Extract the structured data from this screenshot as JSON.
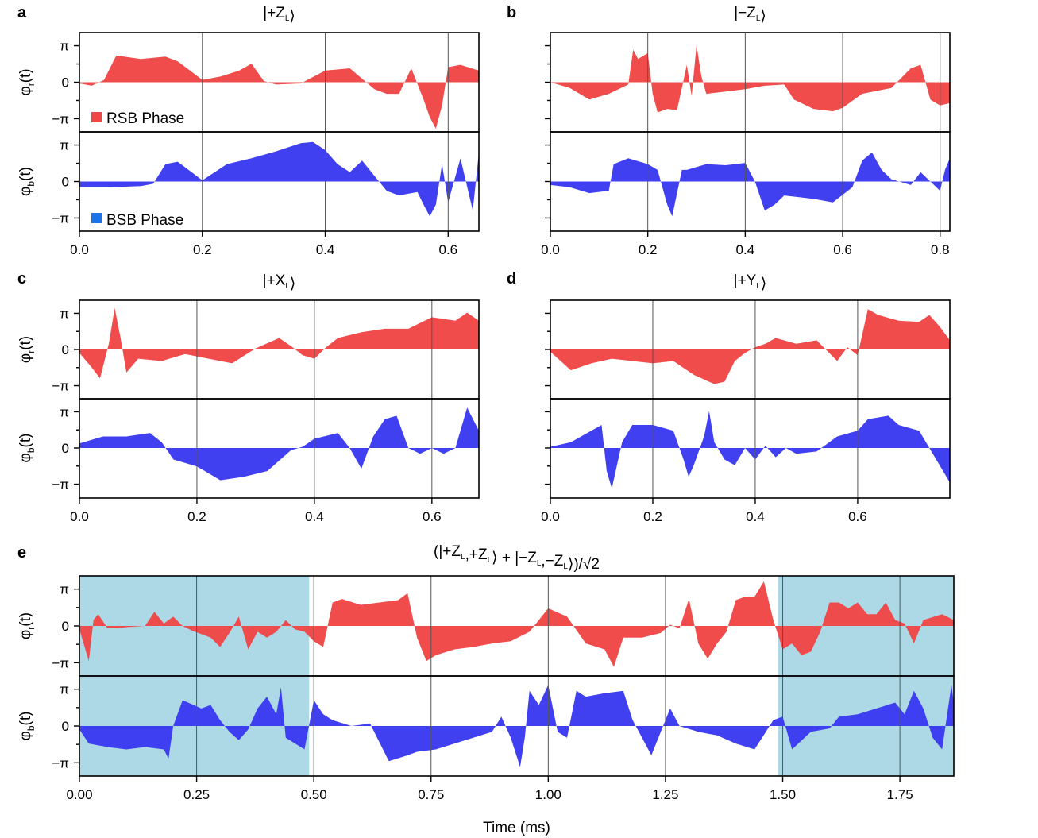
{
  "chart_data": [
    {
      "panel": "a",
      "type": "area",
      "title": "|+Z_L⟩",
      "xlim": [
        0,
        0.65
      ],
      "xticks": [
        "0.0",
        "0.2",
        "0.4",
        "0.6"
      ],
      "xtick_values": [
        0,
        0.2,
        0.4,
        0.6
      ],
      "vlines": [
        0.2,
        0.4,
        0.6
      ],
      "yticks": [
        "π",
        "0",
        "−π"
      ],
      "ylim": [
        -4.0,
        4.0
      ],
      "ylabels": {
        "top": "φr(t)",
        "bottom": "φb(t)"
      },
      "legend": {
        "top": "RSB Phase",
        "bottom": "BSB Phase"
      },
      "series": [
        {
          "name": "RSB Phase",
          "color": "#f04646",
          "x": [
            0,
            0.02,
            0.04,
            0.06,
            0.1,
            0.14,
            0.16,
            0.18,
            0.2,
            0.23,
            0.26,
            0.28,
            0.3,
            0.32,
            0.36,
            0.4,
            0.44,
            0.48,
            0.5,
            0.52,
            0.54,
            0.56,
            0.57,
            0.58,
            0.59,
            0.6,
            0.62,
            0.65
          ],
          "y": [
            -0.1,
            -0.3,
            0.2,
            2.3,
            2.0,
            2.2,
            1.8,
            1.0,
            0.2,
            0.5,
            1.0,
            1.6,
            0.1,
            -0.2,
            -0.1,
            1.0,
            1.2,
            -0.6,
            -1.0,
            -1.0,
            1.2,
            -1.5,
            -3.0,
            -4.0,
            -2.0,
            1.3,
            1.5,
            1.0
          ]
        },
        {
          "name": "BSB Phase",
          "color": "#3a3af0",
          "x": [
            0,
            0.05,
            0.1,
            0.12,
            0.14,
            0.16,
            0.2,
            0.24,
            0.28,
            0.32,
            0.36,
            0.38,
            0.4,
            0.42,
            0.44,
            0.46,
            0.48,
            0.5,
            0.52,
            0.55,
            0.56,
            0.57,
            0.58,
            0.59,
            0.6,
            0.62,
            0.64,
            0.65
          ],
          "y": [
            -0.5,
            -0.5,
            -0.4,
            -0.2,
            1.5,
            1.7,
            0.1,
            1.5,
            2.0,
            2.6,
            3.3,
            3.4,
            2.7,
            1.5,
            0.8,
            1.8,
            0.5,
            -0.8,
            -1.2,
            -0.9,
            -2.0,
            -3.0,
            -2.0,
            1.5,
            -1.8,
            2.0,
            -2.5,
            2.5
          ]
        }
      ]
    },
    {
      "panel": "b",
      "type": "area",
      "title": "|−Z_L⟩",
      "xlim": [
        0,
        0.82
      ],
      "xticks": [
        "0.0",
        "0.2",
        "0.4",
        "0.6",
        "0.8"
      ],
      "xtick_values": [
        0,
        0.2,
        0.4,
        0.6,
        0.8
      ],
      "vlines": [
        0.2,
        0.4,
        0.6,
        0.8
      ],
      "yticks": [],
      "ylim": [
        -4.0,
        4.0
      ],
      "ylabels": {
        "top": "",
        "bottom": ""
      },
      "series": [
        {
          "name": "RSB Phase",
          "color": "#f04646",
          "x": [
            0,
            0.04,
            0.08,
            0.12,
            0.16,
            0.17,
            0.18,
            0.2,
            0.21,
            0.22,
            0.24,
            0.26,
            0.27,
            0.28,
            0.29,
            0.3,
            0.31,
            0.32,
            0.36,
            0.4,
            0.44,
            0.48,
            0.5,
            0.54,
            0.58,
            0.6,
            0.64,
            0.7,
            0.74,
            0.76,
            0.78,
            0.8,
            0.82
          ],
          "y": [
            0,
            -0.5,
            -1.5,
            -1.0,
            -0.2,
            2.8,
            2.0,
            2.5,
            -1.0,
            -2.6,
            -2.3,
            -2.4,
            -0.5,
            1.5,
            -1.2,
            3.2,
            0.5,
            -1.0,
            -0.8,
            -0.6,
            -0.3,
            -0.2,
            -1.5,
            -2.3,
            -2.5,
            -2.2,
            -1.0,
            -0.5,
            1.2,
            1.5,
            -1.5,
            -2.0,
            -1.8
          ]
        },
        {
          "name": "BSB Phase",
          "color": "#3a3af0",
          "x": [
            0,
            0.04,
            0.08,
            0.12,
            0.13,
            0.16,
            0.2,
            0.22,
            0.24,
            0.25,
            0.26,
            0.27,
            0.28,
            0.32,
            0.36,
            0.4,
            0.42,
            0.44,
            0.46,
            0.48,
            0.5,
            0.54,
            0.58,
            0.62,
            0.64,
            0.66,
            0.68,
            0.7,
            0.74,
            0.76,
            0.78,
            0.8,
            0.81,
            0.82
          ],
          "y": [
            -0.3,
            -0.5,
            -1.0,
            -0.8,
            1.5,
            2.0,
            1.5,
            1.0,
            -2.0,
            -3.0,
            -1.0,
            1.0,
            1.0,
            1.5,
            1.4,
            1.6,
            0.0,
            -2.5,
            -2.0,
            -1.2,
            -1.3,
            -1.5,
            -1.8,
            -0.5,
            1.8,
            2.5,
            1.0,
            0.2,
            -0.3,
            0.8,
            0.0,
            -0.8,
            1.0,
            2.0
          ]
        }
      ]
    },
    {
      "panel": "c",
      "type": "area",
      "title": "|+X_L⟩",
      "xlim": [
        0,
        0.68
      ],
      "xticks": [
        "0.0",
        "0.2",
        "0.4",
        "0.6"
      ],
      "xtick_values": [
        0,
        0.2,
        0.4,
        0.6
      ],
      "vlines": [
        0.2,
        0.4,
        0.6
      ],
      "yticks": [
        "π",
        "0",
        "−π"
      ],
      "ylim": [
        -4.0,
        4.0
      ],
      "ylabels": {
        "top": "φr(t)",
        "bottom": "φb(t)"
      },
      "series": [
        {
          "name": "RSB Phase",
          "color": "#f04646",
          "x": [
            0,
            0.02,
            0.035,
            0.05,
            0.06,
            0.07,
            0.08,
            0.1,
            0.14,
            0.18,
            0.22,
            0.26,
            0.3,
            0.34,
            0.36,
            0.38,
            0.4,
            0.42,
            0.44,
            0.48,
            0.52,
            0.56,
            0.6,
            0.64,
            0.66,
            0.68
          ],
          "y": [
            -0.3,
            -1.5,
            -2.5,
            0.5,
            3.6,
            1.0,
            -2.0,
            -0.8,
            -1.0,
            -0.4,
            -0.8,
            -1.2,
            0.1,
            1.0,
            0.3,
            -0.5,
            -0.8,
            0.2,
            1.0,
            1.5,
            1.8,
            1.8,
            2.8,
            2.5,
            3.2,
            2.5
          ]
        },
        {
          "name": "BSB Phase",
          "color": "#3a3af0",
          "x": [
            0,
            0.04,
            0.08,
            0.12,
            0.14,
            0.16,
            0.2,
            0.24,
            0.28,
            0.32,
            0.36,
            0.38,
            0.4,
            0.44,
            0.46,
            0.48,
            0.5,
            0.52,
            0.54,
            0.56,
            0.58,
            0.6,
            0.62,
            0.64,
            0.66,
            0.68
          ],
          "y": [
            0.4,
            1.0,
            1.0,
            1.3,
            0.5,
            -1.0,
            -1.6,
            -2.8,
            -2.5,
            -2.0,
            -0.2,
            0.1,
            0.8,
            1.3,
            0.0,
            -1.8,
            1.0,
            2.5,
            2.8,
            0.0,
            -0.5,
            0.0,
            -0.5,
            0.0,
            3.5,
            1.5
          ]
        }
      ]
    },
    {
      "panel": "d",
      "type": "area",
      "title": "|+Y_L⟩",
      "xlim": [
        0,
        0.78
      ],
      "xticks": [
        "0.0",
        "0.2",
        "0.4",
        "0.6"
      ],
      "xtick_values": [
        0,
        0.2,
        0.4,
        0.6
      ],
      "vlines": [
        0.2,
        0.4,
        0.6
      ],
      "yticks": [],
      "ylim": [
        -4.0,
        4.0
      ],
      "ylabels": {
        "top": "",
        "bottom": ""
      },
      "series": [
        {
          "name": "RSB Phase",
          "color": "#f04646",
          "x": [
            0,
            0.04,
            0.08,
            0.12,
            0.16,
            0.2,
            0.24,
            0.28,
            0.32,
            0.34,
            0.36,
            0.38,
            0.4,
            0.42,
            0.44,
            0.48,
            0.52,
            0.56,
            0.58,
            0.6,
            0.62,
            0.64,
            0.68,
            0.72,
            0.74,
            0.76,
            0.78
          ],
          "y": [
            -0.2,
            -1.8,
            -1.2,
            -0.8,
            -1.0,
            -1.2,
            -1.0,
            -2.2,
            -3.0,
            -2.8,
            -1.0,
            -0.3,
            0.2,
            0.5,
            1.0,
            0.5,
            0.8,
            -1.0,
            0.2,
            -0.5,
            3.5,
            3.0,
            2.5,
            2.4,
            3.0,
            2.0,
            0.8
          ]
        },
        {
          "name": "BSB Phase",
          "color": "#3a3af0",
          "x": [
            0,
            0.04,
            0.08,
            0.1,
            0.11,
            0.12,
            0.14,
            0.16,
            0.2,
            0.24,
            0.26,
            0.27,
            0.28,
            0.3,
            0.31,
            0.32,
            0.34,
            0.36,
            0.38,
            0.4,
            0.42,
            0.44,
            0.46,
            0.48,
            0.52,
            0.56,
            0.6,
            0.62,
            0.66,
            0.68,
            0.72,
            0.74,
            0.76,
            0.78
          ],
          "y": [
            0.1,
            0.5,
            1.5,
            2.0,
            -2.0,
            -3.5,
            0.5,
            2.0,
            2.0,
            1.5,
            -1.0,
            -2.5,
            -1.5,
            1.0,
            3.2,
            0.5,
            -1.0,
            -1.5,
            0.0,
            -1.0,
            0.2,
            -0.8,
            0.0,
            -0.5,
            -0.3,
            1.0,
            1.5,
            2.5,
            2.8,
            2.0,
            1.5,
            0.0,
            -1.5,
            -3.0
          ]
        }
      ]
    },
    {
      "panel": "e",
      "type": "area",
      "title": "(|+Z_L,+Z_L⟩ + |−Z_L,−Z_L⟩)/√2",
      "xlim": [
        0,
        1.865
      ],
      "xticks": [
        "0.00",
        "0.25",
        "0.50",
        "0.75",
        "1.00",
        "1.25",
        "1.50",
        "1.75"
      ],
      "xtick_values": [
        0,
        0.25,
        0.5,
        0.75,
        1.0,
        1.25,
        1.5,
        1.75
      ],
      "vlines": [
        0.25,
        0.5,
        0.75,
        1.0,
        1.25,
        1.5,
        1.75
      ],
      "shaded_regions": [
        [
          0,
          0.49
        ],
        [
          1.49,
          1.865
        ]
      ],
      "xlabel": "Time (ms)",
      "yticks": [
        "π",
        "0",
        "−π"
      ],
      "ylim": [
        -4.0,
        4.0
      ],
      "ylabels": {
        "top": "φr(t)",
        "bottom": "φb(t)"
      },
      "series": [
        {
          "name": "RSB Phase",
          "color": "#f04646",
          "x": [
            0,
            0.02,
            0.03,
            0.04,
            0.06,
            0.08,
            0.1,
            0.14,
            0.16,
            0.18,
            0.2,
            0.22,
            0.24,
            0.28,
            0.3,
            0.32,
            0.34,
            0.36,
            0.38,
            0.4,
            0.42,
            0.44,
            0.46,
            0.48,
            0.5,
            0.52,
            0.54,
            0.56,
            0.6,
            0.64,
            0.68,
            0.7,
            0.72,
            0.74,
            0.76,
            0.8,
            0.84,
            0.88,
            0.92,
            0.96,
            0.98,
            1.0,
            1.04,
            1.08,
            1.12,
            1.14,
            1.16,
            1.2,
            1.24,
            1.26,
            1.28,
            1.3,
            1.32,
            1.34,
            1.36,
            1.38,
            1.4,
            1.42,
            1.44,
            1.46,
            1.48,
            1.5,
            1.52,
            1.54,
            1.56,
            1.58,
            1.6,
            1.62,
            1.64,
            1.66,
            1.68,
            1.7,
            1.72,
            1.74,
            1.76,
            1.78,
            1.8,
            1.84,
            1.865
          ],
          "y": [
            -0.3,
            -3.0,
            0.5,
            1.0,
            -0.2,
            -0.2,
            -0.1,
            0.0,
            1.2,
            0.2,
            0.8,
            0.0,
            -0.4,
            -1.0,
            -1.8,
            -0.6,
            0.8,
            -2.0,
            -0.5,
            -1.0,
            -0.5,
            0.5,
            -0.3,
            -0.5,
            -1.3,
            -1.8,
            2.0,
            2.3,
            1.8,
            2.0,
            2.2,
            2.8,
            -1.0,
            -3.0,
            -2.5,
            -2.0,
            -1.8,
            -1.5,
            -1.3,
            -0.5,
            0.5,
            1.5,
            0.8,
            -1.5,
            -2.0,
            -3.5,
            -1.0,
            -1.0,
            -0.6,
            0.1,
            -0.2,
            2.3,
            -1.5,
            -2.8,
            -1.5,
            -0.5,
            2.2,
            2.5,
            2.5,
            3.8,
            0.5,
            -2.0,
            -1.5,
            -2.5,
            -2.2,
            -0.5,
            2.0,
            2.0,
            1.5,
            2.0,
            1.0,
            1.0,
            2.0,
            0.5,
            0.2,
            -1.5,
            0.5,
            1.0,
            0.5
          ]
        },
        {
          "name": "BSB Phase",
          "color": "#3a3af0",
          "x": [
            0,
            0.02,
            0.06,
            0.1,
            0.14,
            0.18,
            0.19,
            0.2,
            0.22,
            0.26,
            0.28,
            0.3,
            0.32,
            0.34,
            0.36,
            0.38,
            0.4,
            0.42,
            0.43,
            0.44,
            0.46,
            0.48,
            0.5,
            0.52,
            0.54,
            0.58,
            0.62,
            0.66,
            0.7,
            0.72,
            0.76,
            0.8,
            0.84,
            0.88,
            0.9,
            0.92,
            0.94,
            0.95,
            0.96,
            0.98,
            1.0,
            1.02,
            1.04,
            1.06,
            1.08,
            1.12,
            1.16,
            1.18,
            1.2,
            1.22,
            1.24,
            1.26,
            1.28,
            1.32,
            1.36,
            1.4,
            1.44,
            1.48,
            1.5,
            1.52,
            1.56,
            1.6,
            1.62,
            1.66,
            1.7,
            1.74,
            1.76,
            1.78,
            1.8,
            1.82,
            1.84,
            1.86,
            1.865
          ],
          "y": [
            -0.3,
            -1.5,
            -1.8,
            -2.0,
            -1.8,
            -2.0,
            -2.8,
            0.0,
            2.2,
            1.5,
            1.8,
            0.5,
            -0.5,
            -1.2,
            -0.3,
            1.5,
            2.5,
            1.0,
            3.3,
            -1.0,
            -1.5,
            -2.0,
            2.2,
            1.0,
            0.5,
            0.0,
            0.2,
            -3.0,
            -2.5,
            -2.2,
            -2.0,
            -1.5,
            -1.0,
            -0.5,
            0.8,
            -1.0,
            -3.5,
            -1.0,
            3.0,
            1.8,
            3.5,
            -0.5,
            -1.0,
            3.0,
            2.5,
            2.8,
            3.0,
            0.5,
            -1.0,
            -2.5,
            -0.5,
            1.5,
            0.0,
            -0.5,
            -0.8,
            -1.5,
            -2.0,
            0.5,
            0.8,
            -2.0,
            -0.5,
            -0.2,
            0.8,
            1.0,
            1.5,
            2.0,
            1.0,
            3.0,
            1.5,
            -1.0,
            -2.0,
            3.5,
            2.0
          ]
        }
      ]
    }
  ]
}
